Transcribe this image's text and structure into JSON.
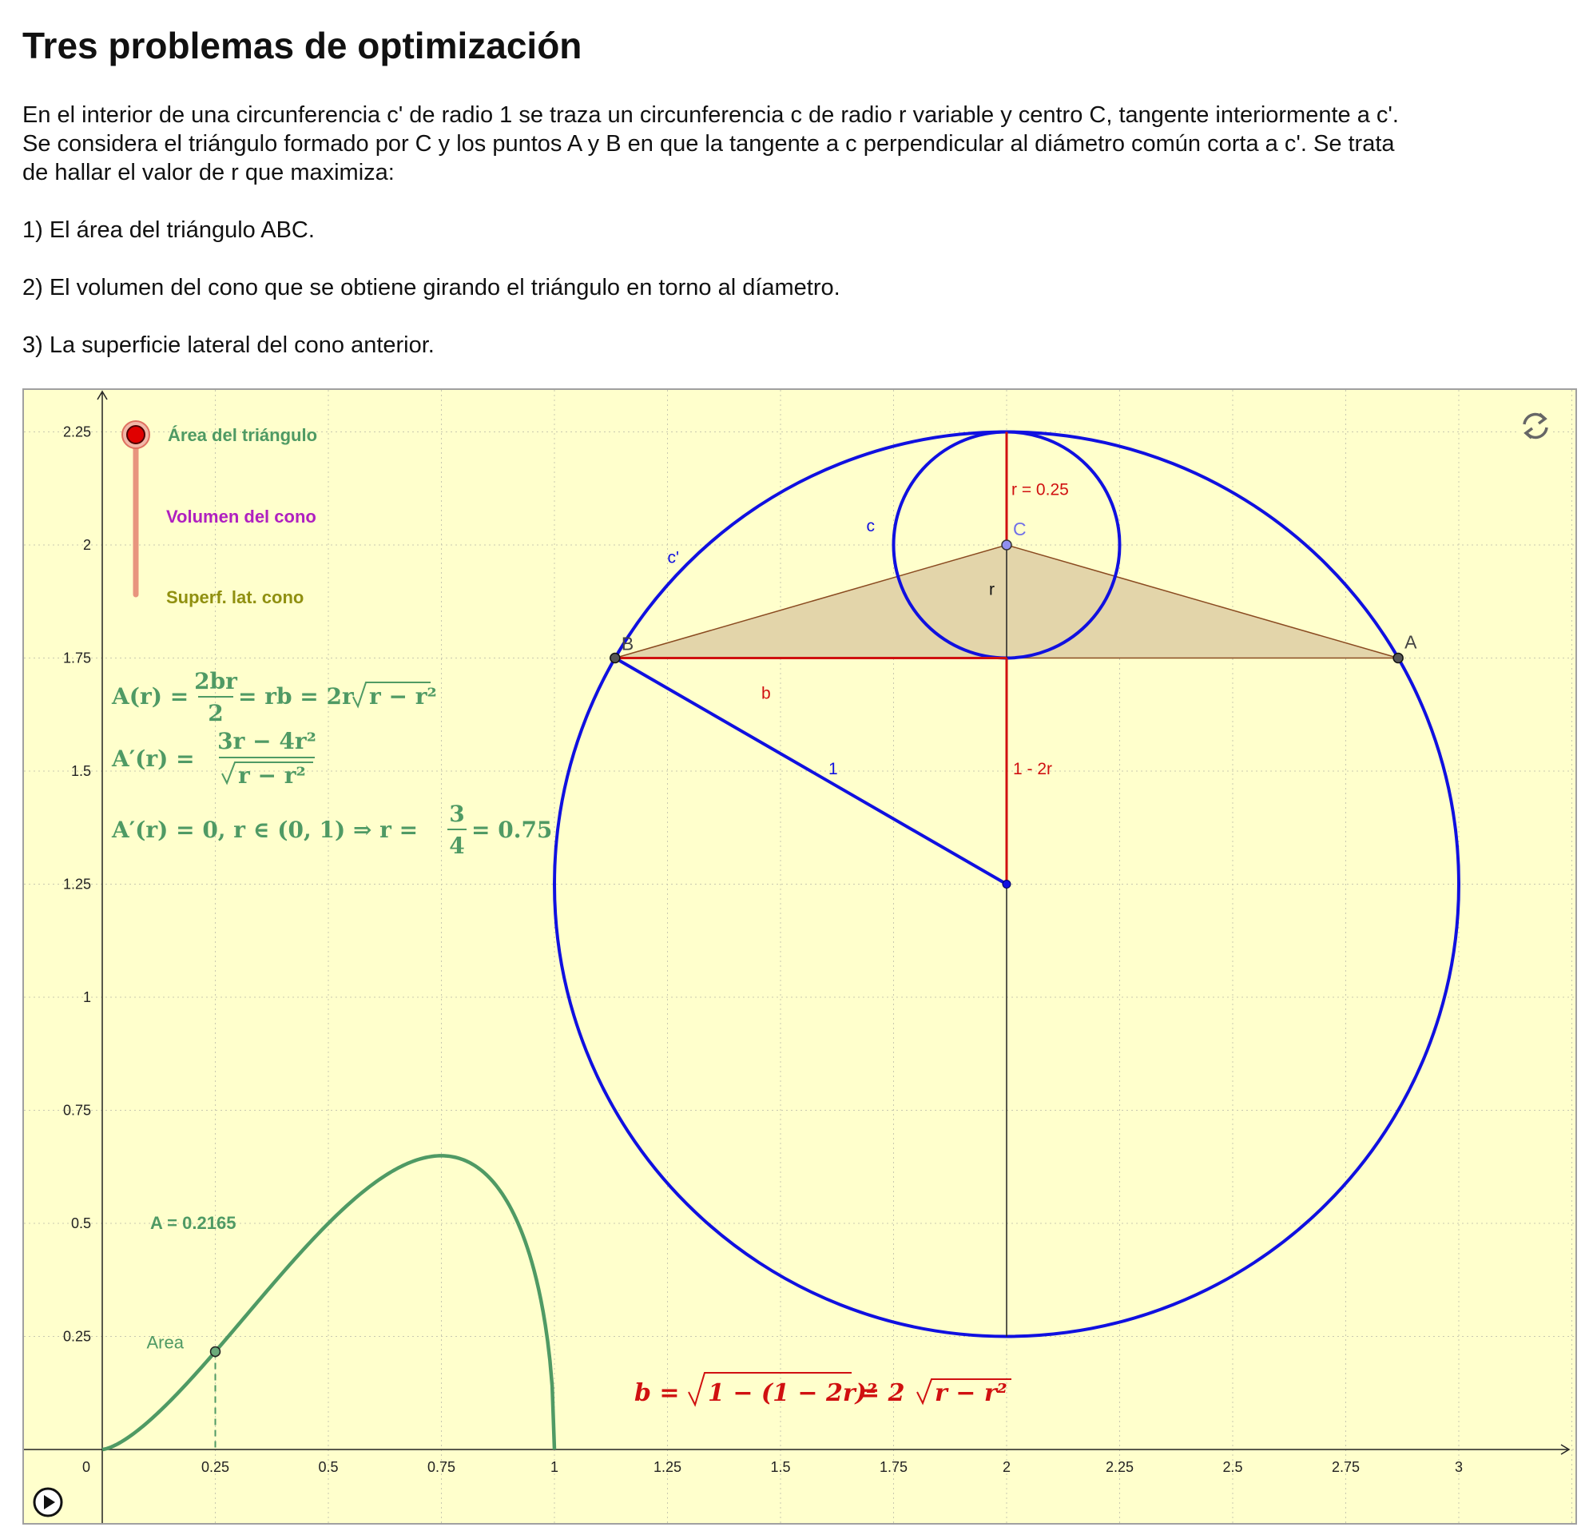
{
  "page": {
    "title": "Tres problemas de optimización",
    "intro_lines": [
      "En el interior de una circunferencia c' de radio 1 se traza un circunferencia c de radio r variable y centro C, tangente interiormente a c'.",
      "Se considera el triángulo formado por C y los puntos A y B en que la tangente a c perpendicular al diámetro común corta a c'. Se trata",
      "de hallar el valor de r que maximiza:"
    ],
    "items": [
      "1) El área del triángulo ABC.",
      "2) El volumen del cono que se obtiene girando el triángulo en torno al díametro.",
      "3) La superficie lateral del cono anterior."
    ]
  },
  "applet": {
    "options": {
      "area": "Área del triángulo",
      "volume": "Volumen del cono",
      "surface": "Superf. lat. cono",
      "selected": "area"
    },
    "formulas": {
      "A_r_lhs": "A(r) =",
      "A_r_num": "2br",
      "A_r_den": "2",
      "A_r_rhs": "= rb = 2r",
      "A_r_root": "r − r²",
      "Ap_lhs": "A′(r) =",
      "Ap_num": "3r − 4r²",
      "Ap_den_root": "r − r²",
      "cond_lhs": "A′(r) = 0,  r ∈ (0, 1)  ⇒  r =",
      "cond_num": "3",
      "cond_den": "4",
      "cond_rhs": "= 0.75",
      "b_lhs": "b =",
      "b_root": "1 − (1 − 2r)²",
      "b_mid": "= 2",
      "b_root2": "r − r²"
    },
    "value_label": "A = 0.2165",
    "curve_point_label": "Area",
    "labels": {
      "r_value": "r = 0.25",
      "C": "C",
      "c": "c",
      "c_prime": "c'",
      "r": "r",
      "B": "B",
      "A": "A",
      "b": "b",
      "one": "1",
      "one_minus_2r": "1 - 2r"
    },
    "colors": {
      "background": "#ffffcc",
      "green": "#4f9a64",
      "purple": "#b020c0",
      "olive": "#909010",
      "blue": "#1010e0",
      "red": "#d01010",
      "triangle_fill": "#e3d5aa",
      "slider_handle": "#e00000"
    },
    "icons": [
      "reset-icon",
      "play-icon"
    ]
  },
  "chart_data": {
    "type": "line",
    "x_ticks": [
      "0",
      "0.25",
      "0.5",
      "0.75",
      "1",
      "1.25",
      "1.5",
      "1.75",
      "2",
      "2.25",
      "2.5",
      "2.75",
      "3"
    ],
    "y_ticks": [
      "0.25",
      "0.5",
      "0.75",
      "1",
      "1.25",
      "1.5",
      "1.75",
      "2",
      "2.25"
    ],
    "xlim": [
      -0.175,
      3.25
    ],
    "ylim": [
      -0.15,
      2.35
    ],
    "grid": true,
    "series": [
      {
        "function": "A(r)",
        "x": [
          0,
          0.05,
          0.1,
          0.15,
          0.2,
          0.25,
          0.3,
          0.35,
          0.4,
          0.45,
          0.5,
          0.55,
          0.6,
          0.65,
          0.7,
          0.75,
          0.8,
          0.85,
          0.9,
          0.95,
          0.98,
          1
        ],
        "y": [
          0,
          0.0218,
          0.06,
          0.1071,
          0.16,
          0.2165,
          0.275,
          0.3339,
          0.3919,
          0.4478,
          0.5,
          0.5472,
          0.5879,
          0.62,
          0.6415,
          0.6495,
          0.64,
          0.607,
          0.54,
          0.4141,
          0.2744,
          0
        ]
      }
    ],
    "current_point": {
      "x": 0.25,
      "y": 0.2165
    },
    "geometry": {
      "big_circle_center": [
        2,
        1.25
      ],
      "big_circle_radius": 1,
      "small_circle_center": [
        2,
        2
      ],
      "small_circle_radius": 0.25,
      "A": [
        2.866,
        1.75
      ],
      "B": [
        1.134,
        1.75
      ],
      "C": [
        2,
        2
      ]
    }
  }
}
